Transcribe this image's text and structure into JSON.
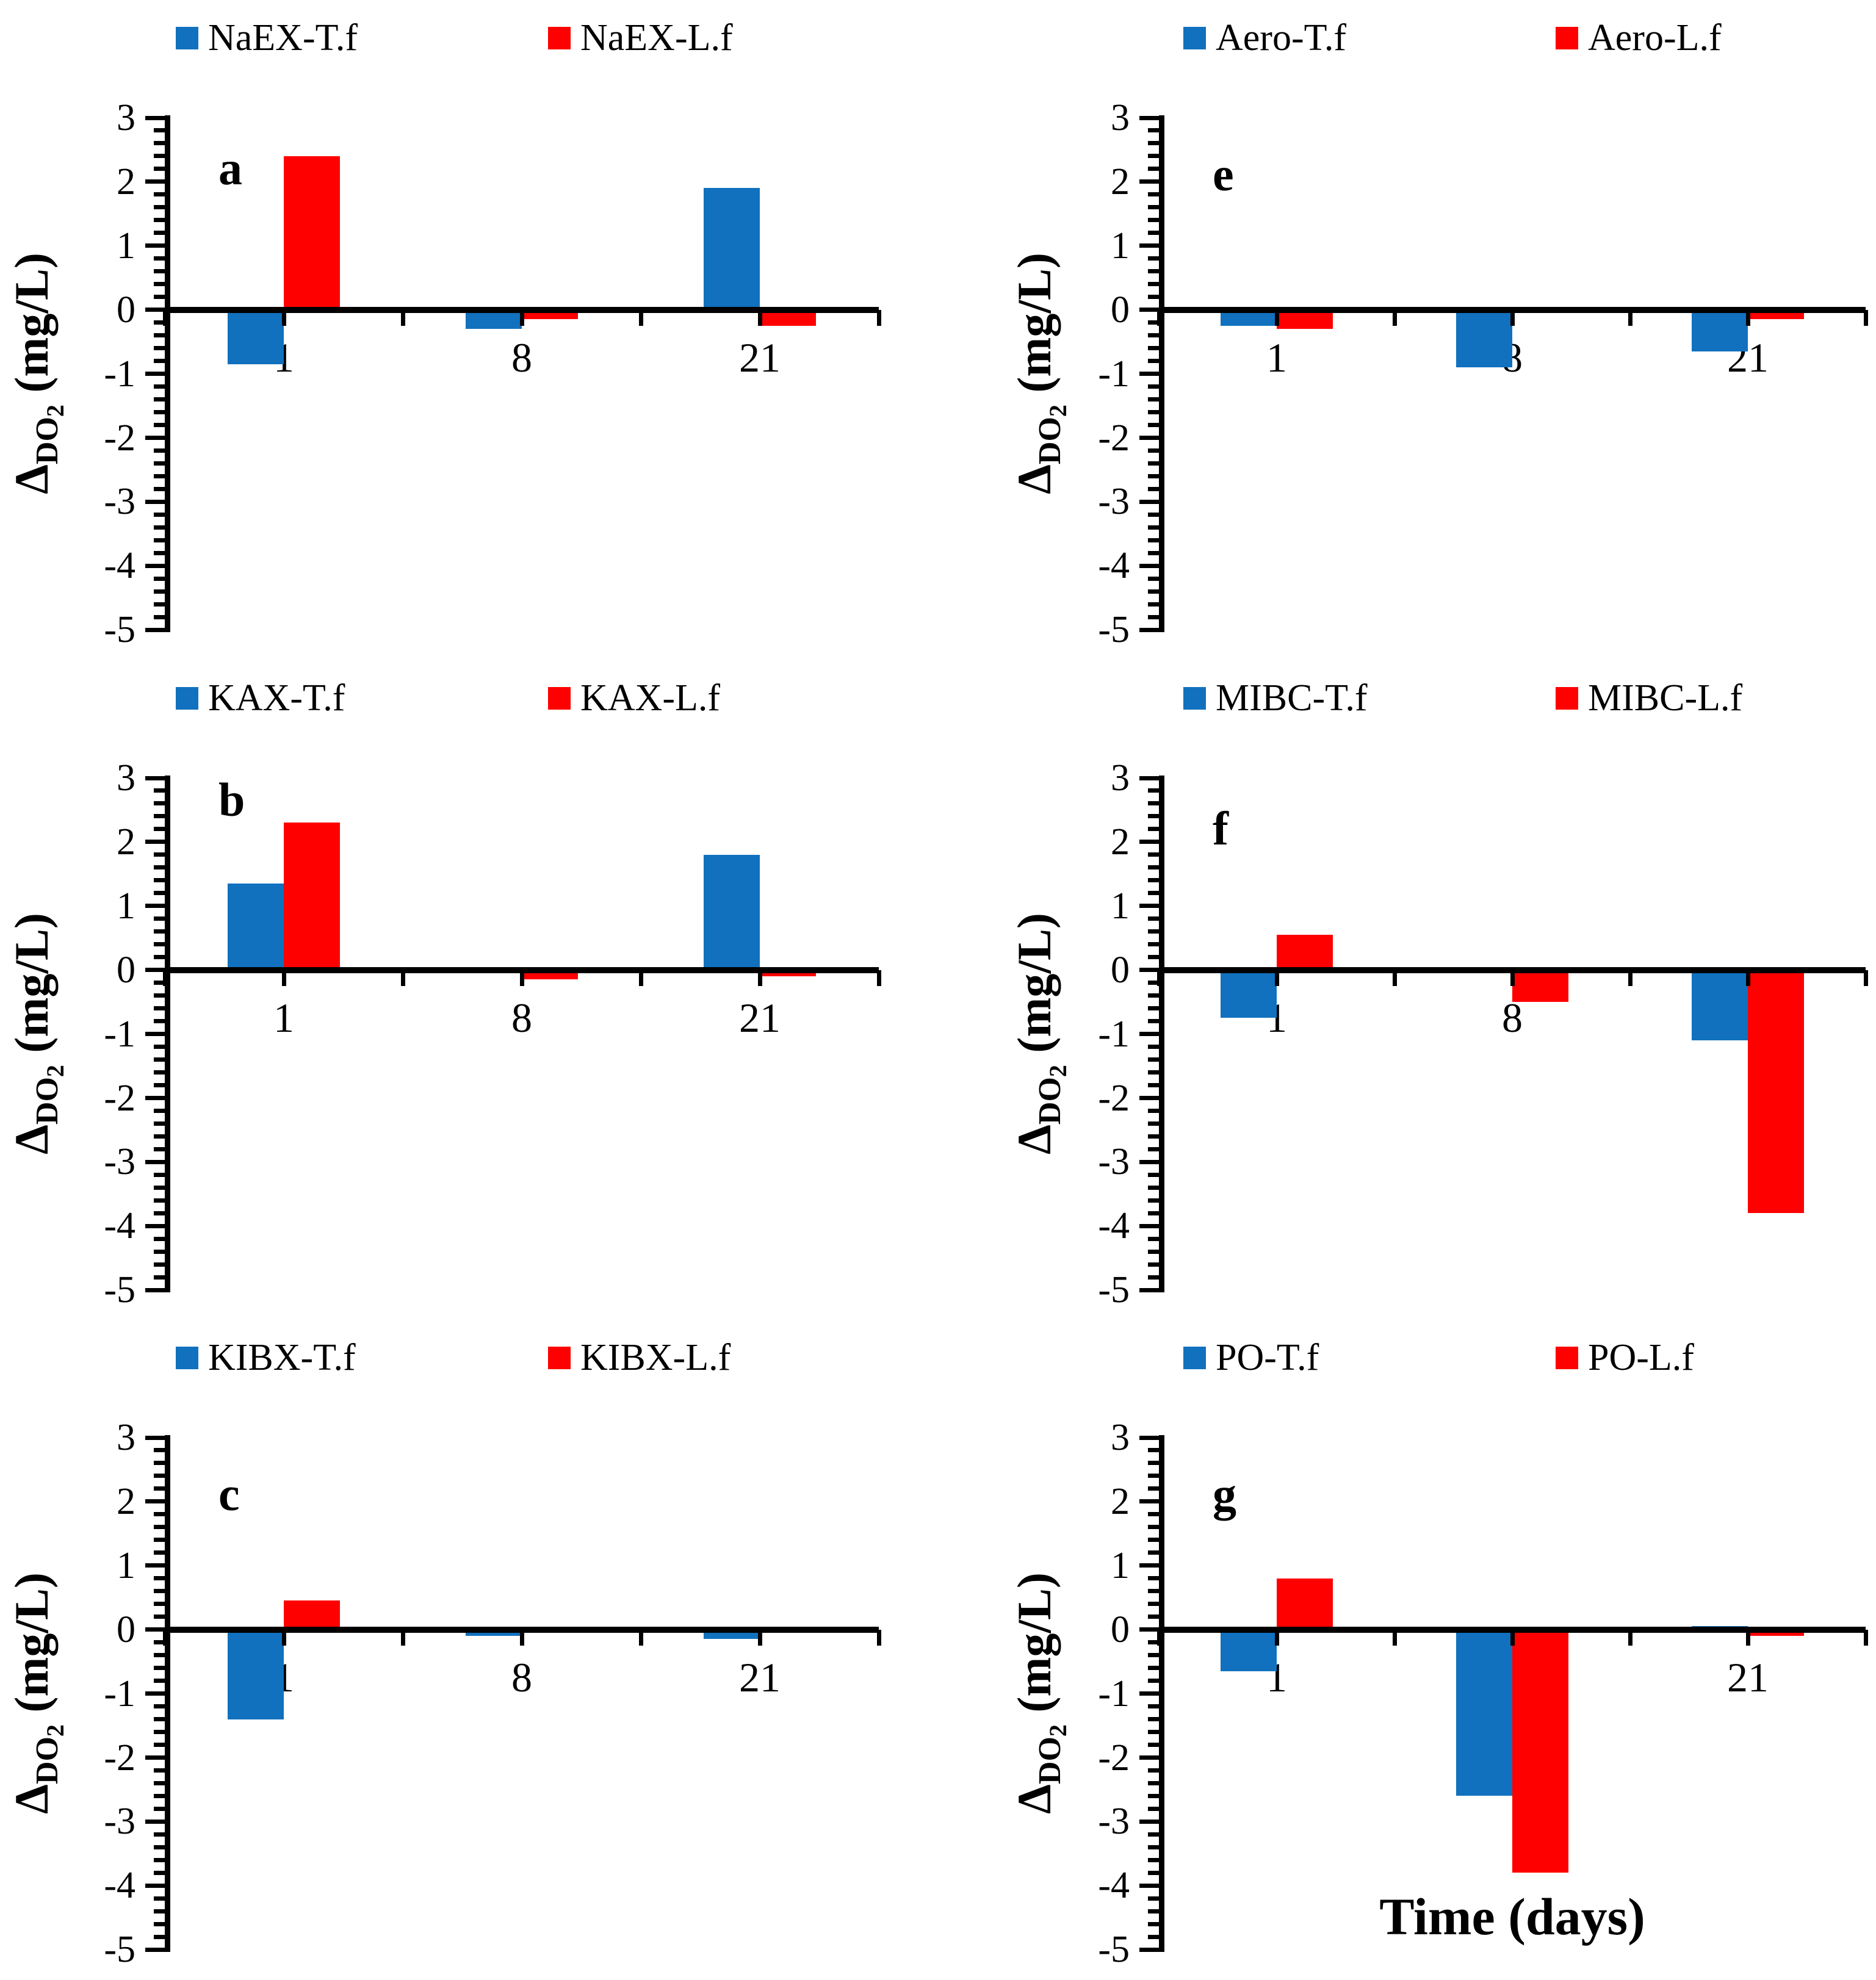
{
  "figure": {
    "xlabel": "Time (days)",
    "ylabel": {
      "delta": "Δ",
      "sub": "DO",
      "sub2": "2",
      "rest": " (mg/L)"
    },
    "colors": {
      "tf": "#1171BE",
      "lf": "#FF0000",
      "axis": "#000000",
      "background": "#FFFFFF"
    },
    "y_tick_labels": [
      "3",
      "2",
      "1",
      "0",
      "-1",
      "-2",
      "-3",
      "-4",
      "-5"
    ],
    "x_tick_labels": [
      "1",
      "8",
      "21"
    ]
  },
  "chart_data": [
    {
      "type": "bar",
      "panel_letter": "a",
      "grid_position": {
        "row": 0,
        "col": 0
      },
      "categories": [
        "1",
        "8",
        "21"
      ],
      "series": [
        {
          "name": "NaEX-T.f",
          "color": "#1171BE",
          "values": [
            -0.85,
            -0.3,
            1.9
          ]
        },
        {
          "name": "NaEX-L.f",
          "color": "#FF0000",
          "values": [
            2.4,
            -0.15,
            -0.25
          ]
        }
      ],
      "ylabel": "ΔDO2 (mg/L)",
      "xlabel": "",
      "ylim": [
        -5,
        3
      ],
      "ytick_major": 1,
      "ytick_minor": 0.2,
      "letter_y_value": 2.2
    },
    {
      "type": "bar",
      "panel_letter": "e",
      "grid_position": {
        "row": 0,
        "col": 1
      },
      "categories": [
        "1",
        "8",
        "21"
      ],
      "series": [
        {
          "name": "Aero-T.f",
          "color": "#1171BE",
          "values": [
            -0.25,
            -0.9,
            -0.65
          ]
        },
        {
          "name": "Aero-L.f",
          "color": "#FF0000",
          "values": [
            -0.3,
            0,
            -0.15
          ]
        }
      ],
      "ylabel": "ΔDO2 (mg/L)",
      "xlabel": "",
      "ylim": [
        -5,
        3
      ],
      "ytick_major": 1,
      "ytick_minor": 0.2,
      "letter_y_value": 2.1
    },
    {
      "type": "bar",
      "panel_letter": "b",
      "grid_position": {
        "row": 1,
        "col": 0
      },
      "categories": [
        "1",
        "8",
        "21"
      ],
      "series": [
        {
          "name": "KAX-T.f",
          "color": "#1171BE",
          "values": [
            1.35,
            0,
            1.8
          ]
        },
        {
          "name": "KAX-L.f",
          "color": "#FF0000",
          "values": [
            2.3,
            -0.15,
            -0.1
          ]
        }
      ],
      "ylabel": "ΔDO2 (mg/L)",
      "xlabel": "",
      "ylim": [
        -5,
        3
      ],
      "ytick_major": 1,
      "ytick_minor": 0.2,
      "letter_y_value": 2.65
    },
    {
      "type": "bar",
      "panel_letter": "f",
      "grid_position": {
        "row": 1,
        "col": 1
      },
      "categories": [
        "1",
        "8",
        "21"
      ],
      "series": [
        {
          "name": "MIBC-T.f",
          "color": "#1171BE",
          "values": [
            -0.75,
            -0.05,
            -1.1
          ]
        },
        {
          "name": "MIBC-L.f",
          "color": "#FF0000",
          "values": [
            0.55,
            -0.5,
            -3.8
          ]
        }
      ],
      "ylabel": "ΔDO2 (mg/L)",
      "xlabel": "",
      "ylim": [
        -5,
        3
      ],
      "ytick_major": 1,
      "ytick_minor": 0.2,
      "letter_y_value": 2.2
    },
    {
      "type": "bar",
      "panel_letter": "c",
      "grid_position": {
        "row": 2,
        "col": 0
      },
      "categories": [
        "1",
        "8",
        "21"
      ],
      "series": [
        {
          "name": "KIBX-T.f",
          "color": "#1171BE",
          "values": [
            -1.4,
            -0.1,
            -0.15
          ]
        },
        {
          "name": "KIBX-L.f",
          "color": "#FF0000",
          "values": [
            0.45,
            0,
            -0.05
          ]
        }
      ],
      "ylabel": "ΔDO2 (mg/L)",
      "xlabel": "",
      "ylim": [
        -5,
        3
      ],
      "ytick_major": 1,
      "ytick_minor": 0.2,
      "letter_y_value": 2.1
    },
    {
      "type": "bar",
      "panel_letter": "g",
      "grid_position": {
        "row": 2,
        "col": 1
      },
      "categories": [
        "1",
        "8",
        "21"
      ],
      "series": [
        {
          "name": "PO-T.f",
          "color": "#1171BE",
          "values": [
            -0.65,
            -2.6,
            0.05
          ]
        },
        {
          "name": "PO-L.f",
          "color": "#FF0000",
          "values": [
            0.8,
            -3.8,
            -0.1
          ]
        }
      ],
      "ylabel": "ΔDO2 (mg/L)",
      "xlabel": "Time (days)",
      "ylim": [
        -5,
        3
      ],
      "ytick_major": 1,
      "ytick_minor": 0.2,
      "letter_y_value": 2.1
    }
  ]
}
